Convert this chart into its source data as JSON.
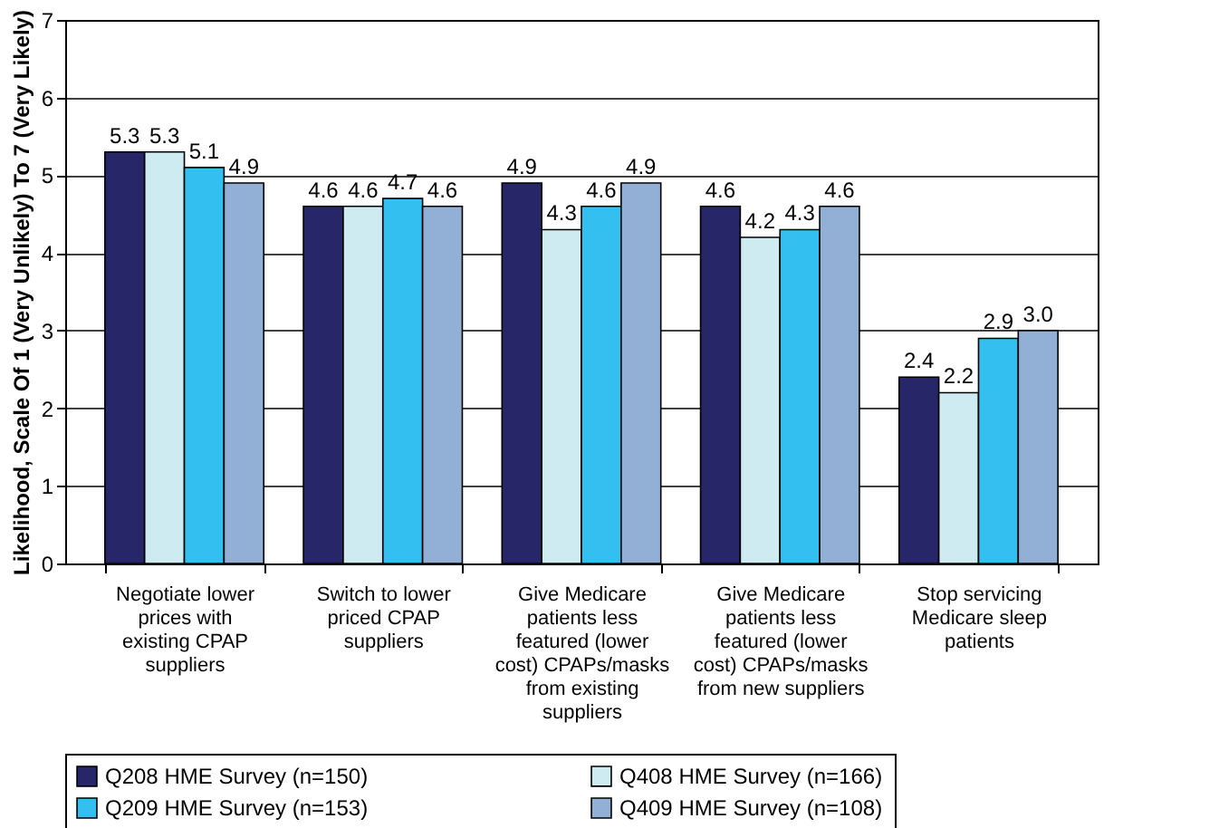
{
  "chart_data": {
    "type": "bar",
    "ylabel": "Likelihood, Scale Of 1 (Very Unlikely) To 7 (Very Likely)",
    "categories": [
      "Negotiate lower prices with existing CPAP suppliers",
      "Switch to lower priced CPAP suppliers",
      "Give Medicare patients less featured (lower cost) CPAPs/masks from existing suppliers",
      "Give Medicare patients less featured (lower cost) CPAPs/masks from new suppliers",
      "Stop servicing Medicare sleep patients"
    ],
    "series": [
      {
        "name": "Q208 HME Survey (n=150)",
        "color": "#262668",
        "values": [
          5.3,
          4.6,
          4.9,
          4.6,
          2.4
        ]
      },
      {
        "name": "Q408 HME Survey (n=166)",
        "color": "#cdebf0",
        "values": [
          5.3,
          4.6,
          4.3,
          4.2,
          2.2
        ]
      },
      {
        "name": "Q209 HME Survey (n=153)",
        "color": "#33c0f0",
        "values": [
          5.1,
          4.7,
          4.6,
          4.3,
          2.9
        ]
      },
      {
        "name": "Q409 HME Survey (n=108)",
        "color": "#92afd6",
        "values": [
          4.9,
          4.6,
          4.9,
          4.6,
          3.0
        ],
        "value_labels": [
          "4.9",
          "4.6",
          "4.9",
          "4.6",
          "3.0"
        ]
      }
    ],
    "ylim": [
      0,
      7
    ],
    "yticks": [
      0,
      1,
      2,
      3,
      4,
      5,
      6,
      7
    ],
    "grid": "y",
    "legend": "bottom",
    "data_labels": true
  }
}
